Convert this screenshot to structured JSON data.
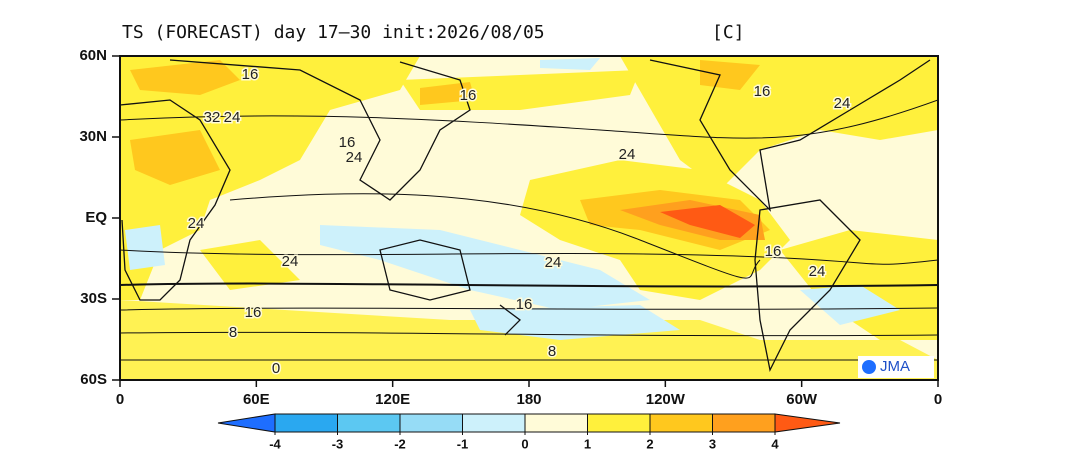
{
  "title": "TS (FORECAST) day 17–30 init:2026/08/05",
  "unit": "[C]",
  "map": {
    "lat_labels": [
      "60N",
      "30N",
      "EQ",
      "30S",
      "60S"
    ],
    "lon_labels": [
      "0",
      "60E",
      "120E",
      "180",
      "120W",
      "60W",
      "0"
    ],
    "contour_labels": [
      16,
      16,
      32,
      24,
      16,
      24,
      24,
      16,
      24,
      24,
      24,
      24,
      16,
      24,
      16,
      16,
      8,
      8,
      0
    ],
    "logo": "JMA"
  },
  "colorbar": {
    "ticks": [
      -4,
      -3,
      -2,
      -1,
      0,
      1,
      2,
      3,
      4
    ],
    "colors": [
      "#1e6eff",
      "#2aa8f0",
      "#5cc8f2",
      "#96dcf6",
      "#cdf1fb",
      "#fffbd8",
      "#fff03c",
      "#ffc81e",
      "#ffa01e",
      "#ff5a14"
    ]
  }
}
